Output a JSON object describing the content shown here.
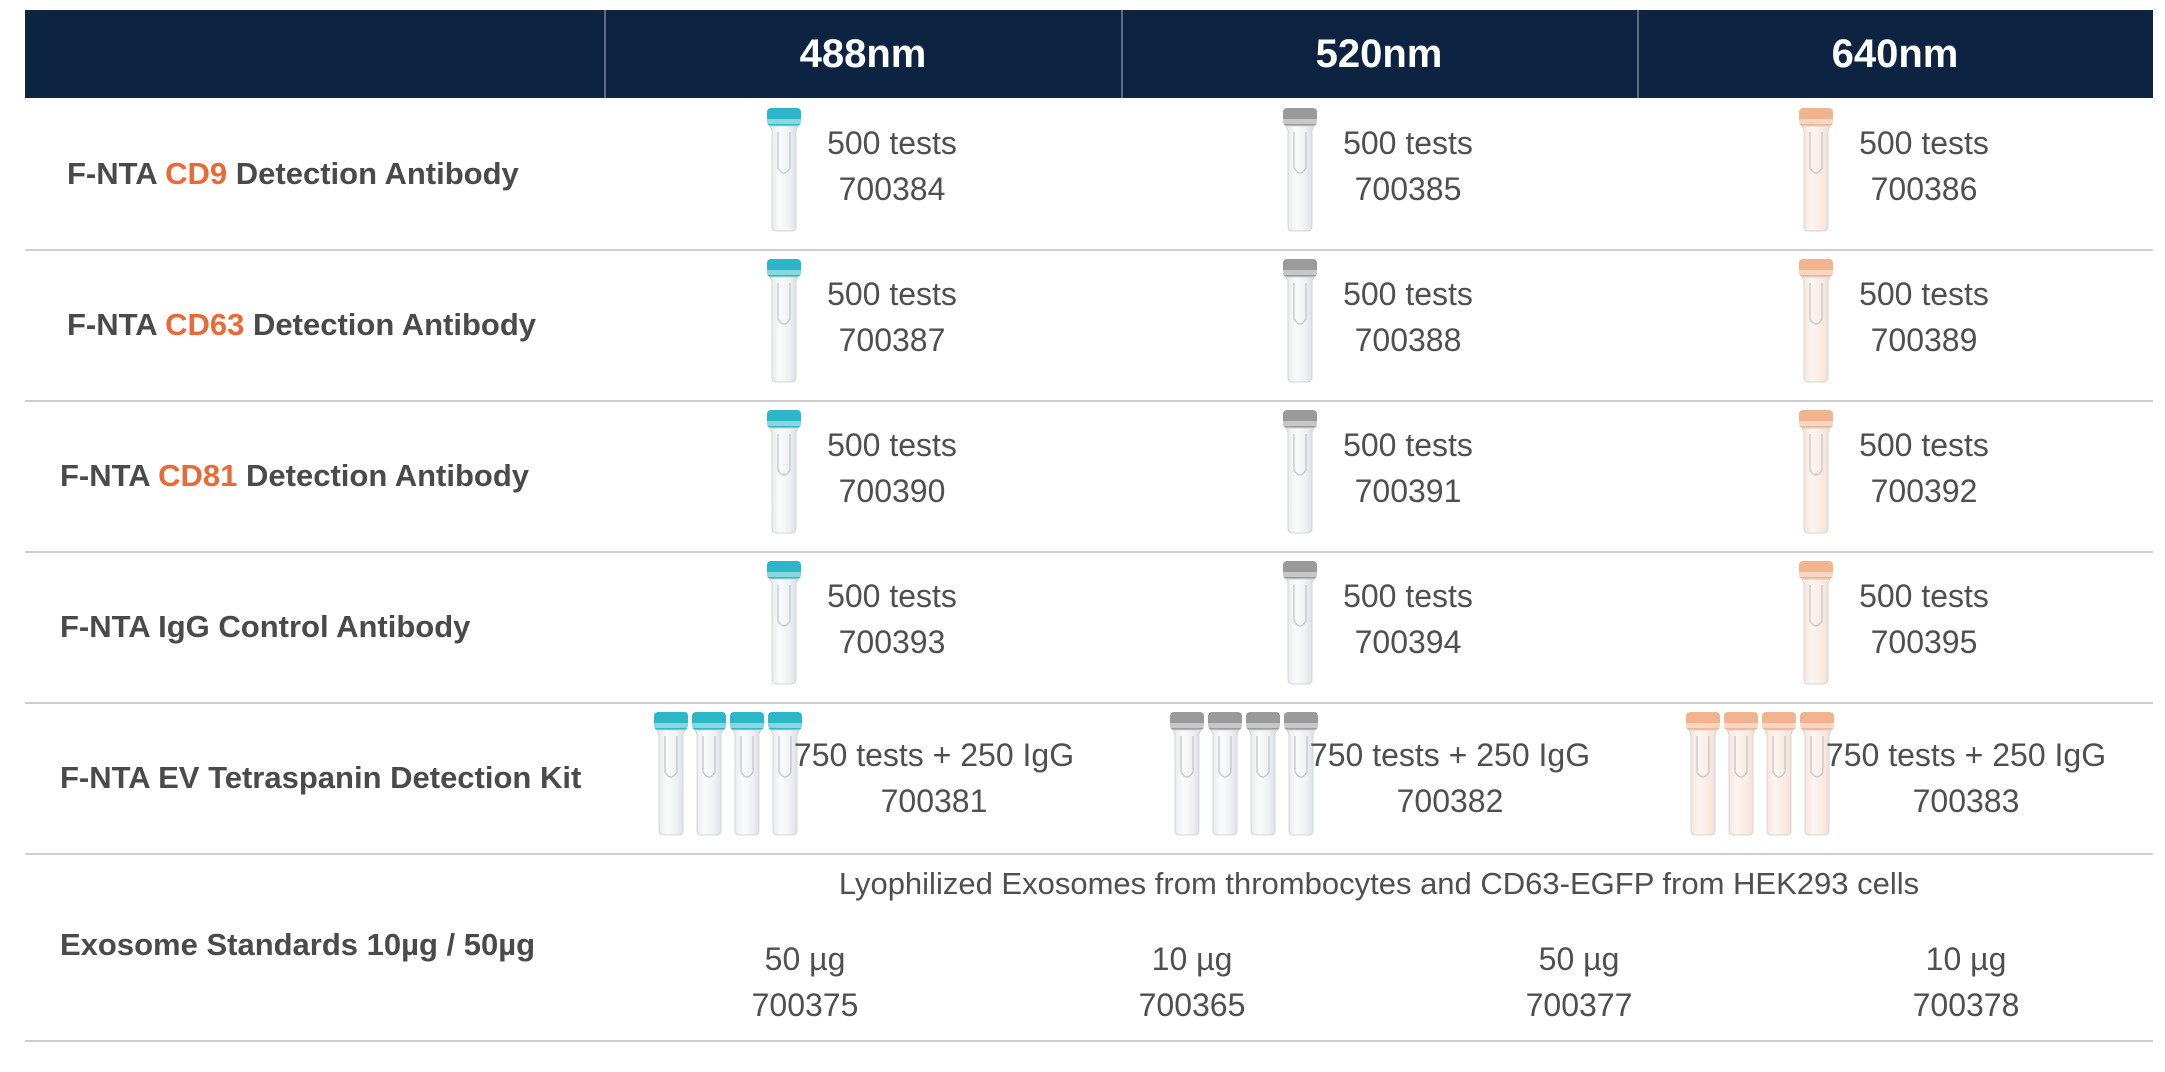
{
  "header": {
    "columns": [
      "488nm",
      "520nm",
      "640nm"
    ]
  },
  "colors": {
    "header_bg": "#0d2342",
    "highlight": "#ea6a37",
    "cap_488": "#2bb7c8",
    "cap_520": "#9a9a9a",
    "cap_640": "#f2b48e"
  },
  "rows": [
    {
      "label_pre": "F-NTA ",
      "label_hl": "CD9",
      "label_post": " Detection Antibody",
      "products": [
        {
          "qty": "500 tests",
          "code": "700384"
        },
        {
          "qty": "500 tests",
          "code": "700385"
        },
        {
          "qty": "500 tests",
          "code": "700386"
        }
      ]
    },
    {
      "label_pre": "F-NTA ",
      "label_hl": "CD63",
      "label_post": " Detection Antibody",
      "products": [
        {
          "qty": "500 tests",
          "code": "700387"
        },
        {
          "qty": "500 tests",
          "code": "700388"
        },
        {
          "qty": "500 tests",
          "code": "700389"
        }
      ]
    },
    {
      "label_pre": "F-NTA ",
      "label_hl": "CD81",
      "label_post": " Detection Antibody",
      "products": [
        {
          "qty": "500 tests",
          "code": "700390"
        },
        {
          "qty": "500 tests",
          "code": "700391"
        },
        {
          "qty": "500 tests",
          "code": "700392"
        }
      ]
    },
    {
      "label_pre": "F-NTA IgG Control Antibody",
      "label_hl": "",
      "label_post": "",
      "products": [
        {
          "qty": "500 tests",
          "code": "700393"
        },
        {
          "qty": "500 tests",
          "code": "700394"
        },
        {
          "qty": "500 tests",
          "code": "700395"
        }
      ]
    },
    {
      "label_pre": "F-NTA EV Tetraspanin Detection Kit",
      "label_hl": "",
      "label_post": "",
      "products": [
        {
          "qty": "750 tests + 250 IgG",
          "code": "700381"
        },
        {
          "qty": "750 tests + 250 IgG",
          "code": "700382"
        },
        {
          "qty": "750 tests + 250 IgG",
          "code": "700383"
        }
      ]
    }
  ],
  "standards": {
    "label": "Exosome Standards 10µg / 50µg",
    "note": "Lyophilized Exosomes from thrombocytes and CD63-EGFP from HEK293 cells",
    "items": [
      {
        "qty": "50 µg",
        "code": "700375"
      },
      {
        "qty": "10 µg",
        "code": "700365"
      },
      {
        "qty": "50 µg",
        "code": "700377"
      },
      {
        "qty": "10 µg",
        "code": "700378"
      }
    ]
  }
}
